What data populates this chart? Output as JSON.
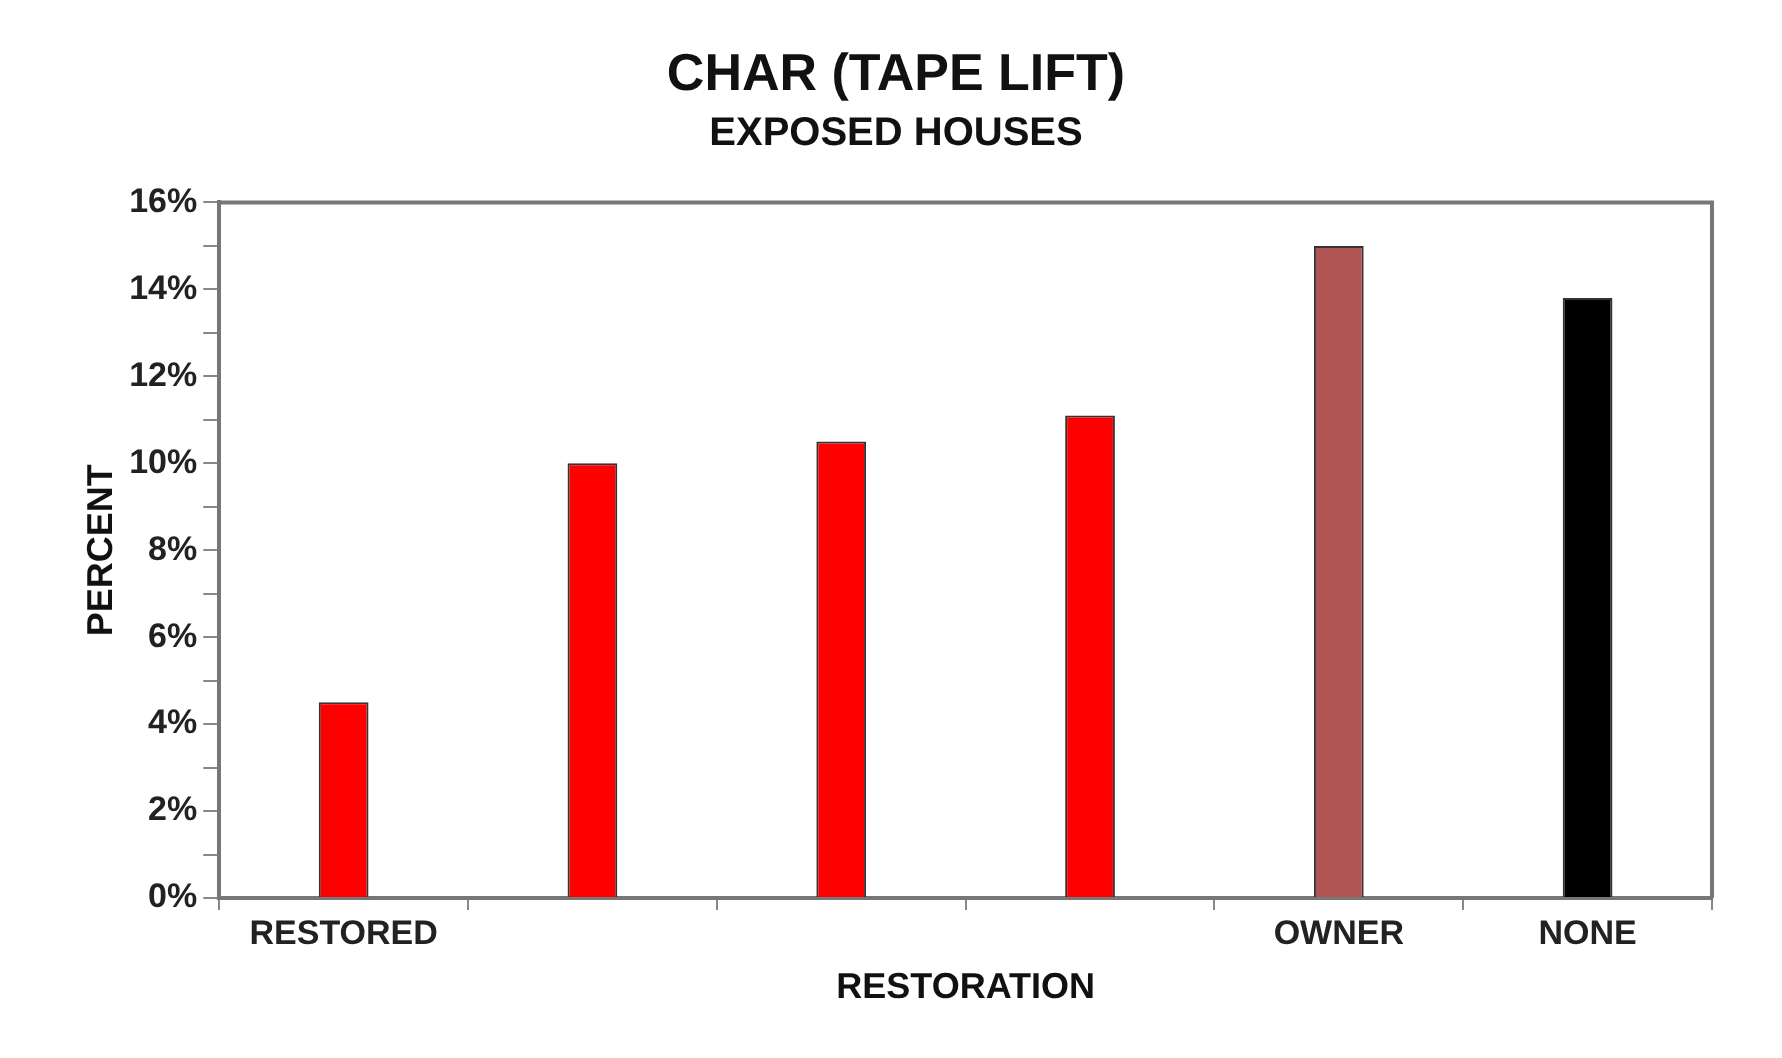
{
  "chart_data": {
    "type": "bar",
    "title": "CHAR (TAPE LIFT)",
    "subtitle": "EXPOSED HOUSES",
    "xlabel": "RESTORATION",
    "ylabel": "PERCENT",
    "categories": [
      "RESTORED",
      null,
      null,
      null,
      "OWNER",
      "NONE"
    ],
    "values": [
      4.5,
      10.0,
      10.5,
      11.1,
      15.0,
      13.8
    ],
    "colors": [
      "#ff0000",
      "#ff0000",
      "#ff0000",
      "#ff0000",
      "#b05353",
      "#000000"
    ],
    "ylim": [
      0,
      16
    ],
    "yticks": [
      {
        "value": 0,
        "label": "0%"
      },
      {
        "value": 1,
        "label": null
      },
      {
        "value": 2,
        "label": "2%"
      },
      {
        "value": 3,
        "label": null
      },
      {
        "value": 4,
        "label": "4%"
      },
      {
        "value": 5,
        "label": null
      },
      {
        "value": 6,
        "label": "6%"
      },
      {
        "value": 7,
        "label": null
      },
      {
        "value": 8,
        "label": "8%"
      },
      {
        "value": 9,
        "label": null
      },
      {
        "value": 10,
        "label": "10%"
      },
      {
        "value": 11,
        "label": null
      },
      {
        "value": 12,
        "label": "12%"
      },
      {
        "value": 13,
        "label": null
      },
      {
        "value": 14,
        "label": "14%"
      },
      {
        "value": 15,
        "label": null
      },
      {
        "value": 16,
        "label": "16%"
      }
    ],
    "grid": false,
    "legend": false
  }
}
